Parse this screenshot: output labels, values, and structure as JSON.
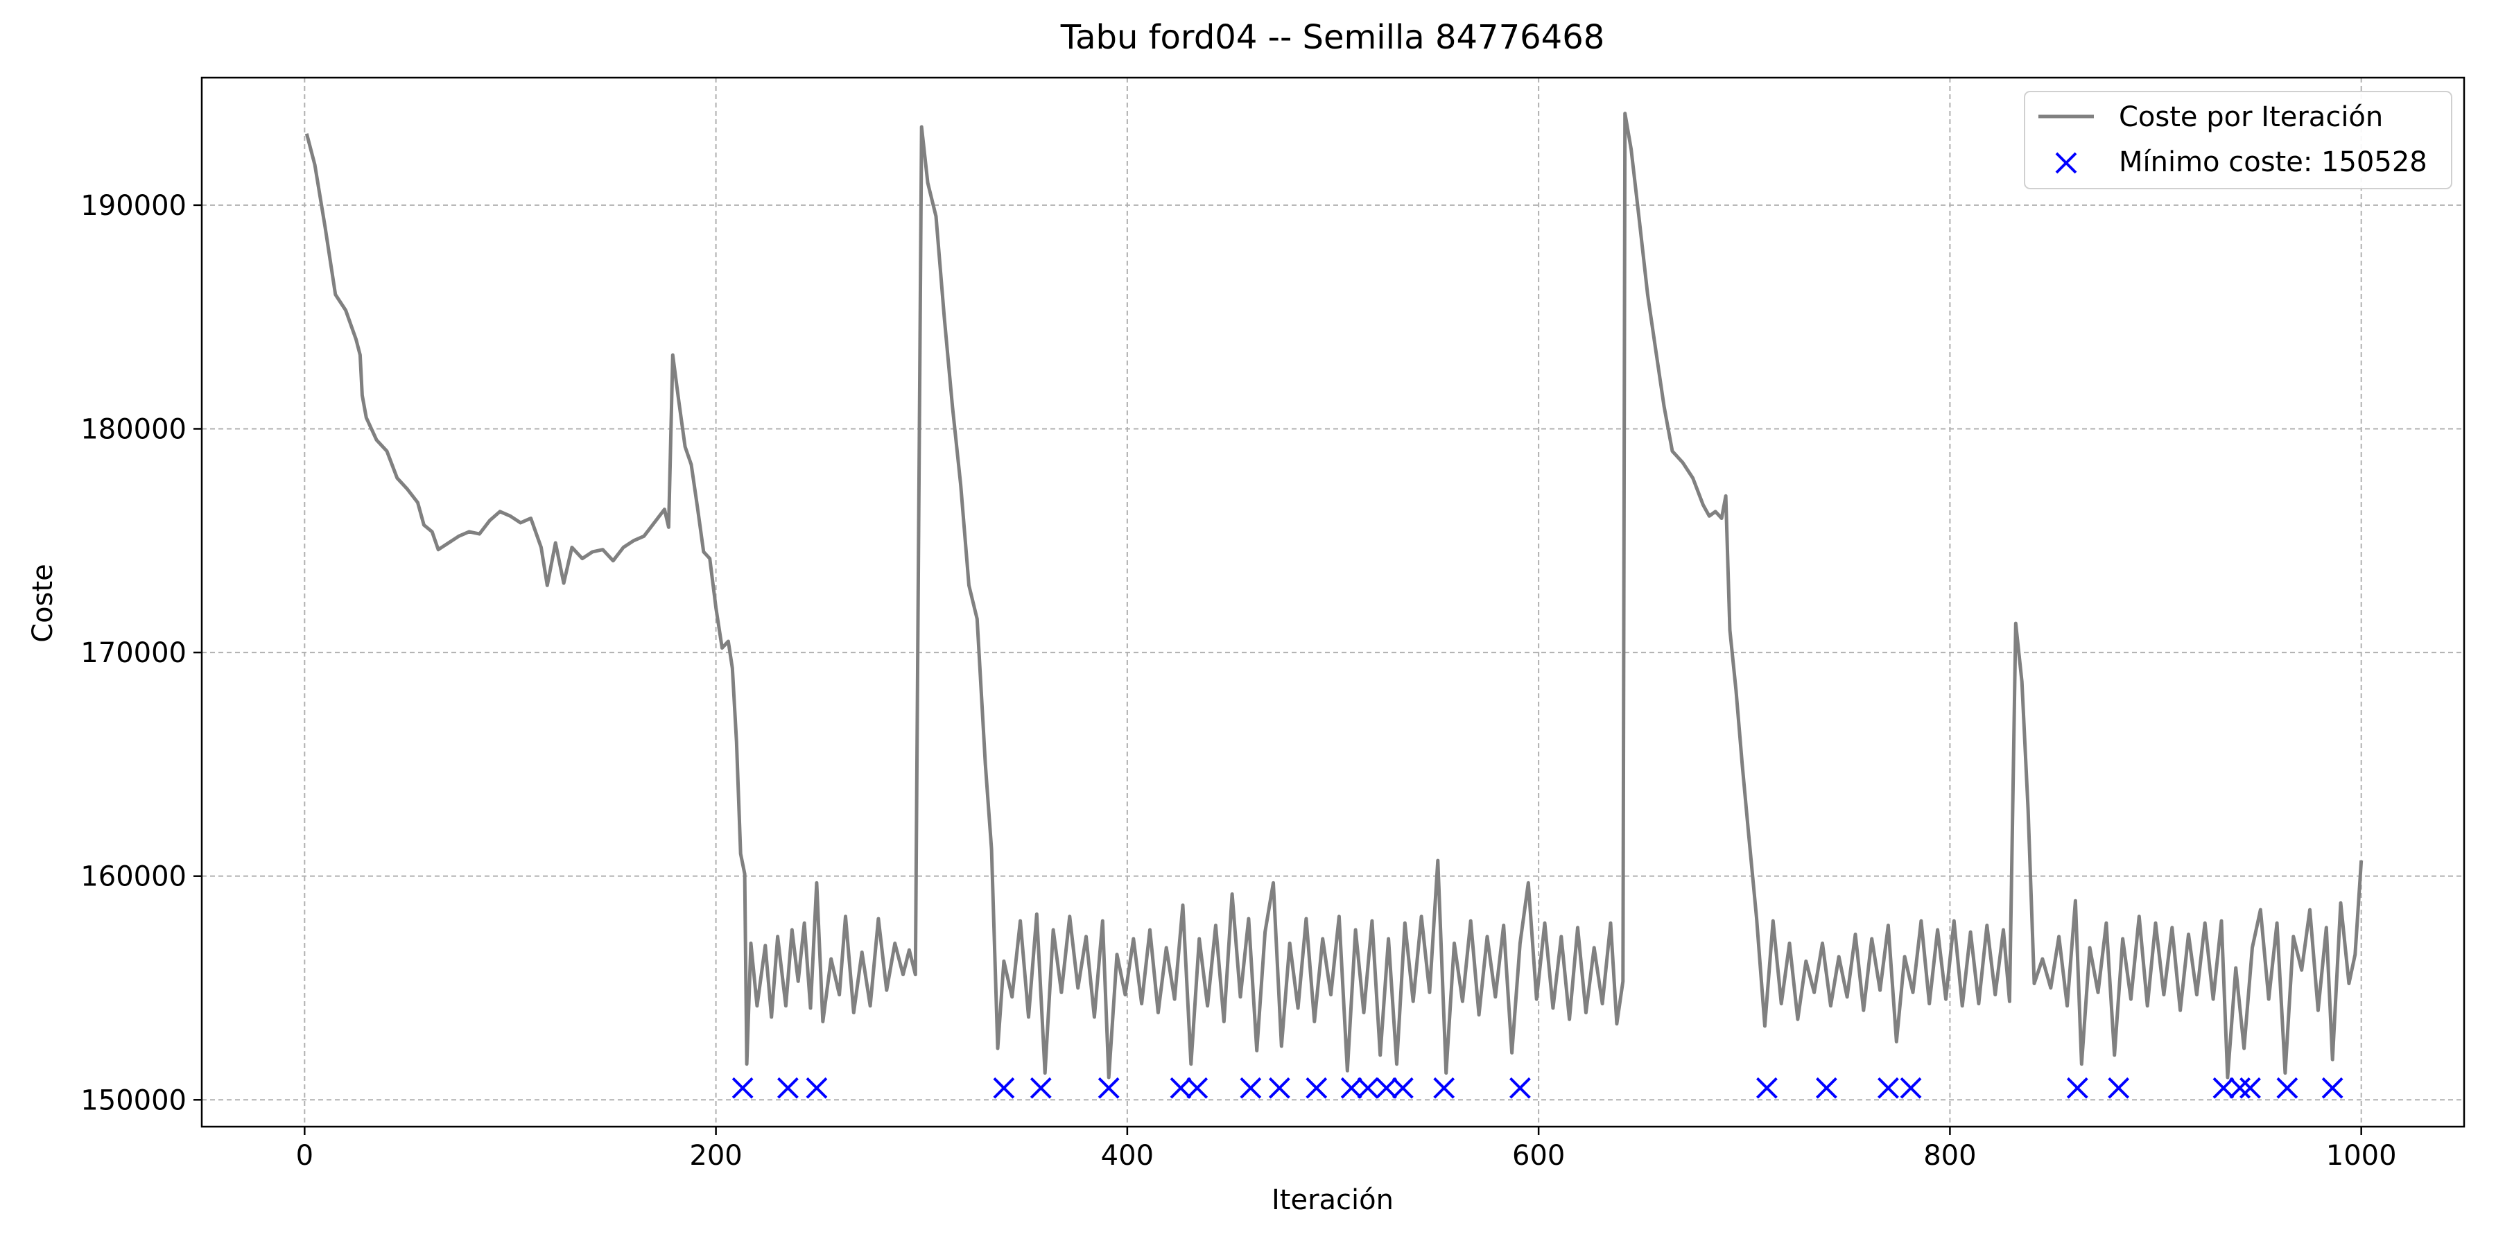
{
  "chart_data": {
    "type": "line",
    "title": "Tabu ford04 -- Semilla 84776468",
    "xlabel": "Iteración",
    "ylabel": "Coste",
    "xlim": [
      -50,
      1050
    ],
    "ylim": [
      148800,
      195700
    ],
    "xticks": [
      0,
      200,
      400,
      600,
      800,
      1000
    ],
    "yticks": [
      150000,
      160000,
      170000,
      180000,
      190000
    ],
    "grid": true,
    "legend_position": "top-right",
    "series": [
      {
        "name": "Coste por Iteración",
        "color": "#808080",
        "anchors": [
          [
            1,
            193200
          ],
          [
            5,
            191800
          ],
          [
            10,
            189000
          ],
          [
            15,
            186000
          ],
          [
            20,
            185300
          ],
          [
            25,
            184000
          ],
          [
            27,
            183300
          ],
          [
            28,
            181500
          ],
          [
            30,
            180500
          ],
          [
            35,
            179500
          ],
          [
            40,
            179000
          ],
          [
            45,
            177800
          ],
          [
            50,
            177300
          ],
          [
            55,
            176700
          ],
          [
            58,
            175700
          ],
          [
            62,
            175400
          ],
          [
            65,
            174600
          ],
          [
            70,
            174900
          ],
          [
            75,
            175200
          ],
          [
            80,
            175400
          ],
          [
            85,
            175300
          ],
          [
            90,
            175900
          ],
          [
            95,
            176300
          ],
          [
            100,
            176100
          ],
          [
            105,
            175800
          ],
          [
            110,
            176000
          ],
          [
            115,
            174700
          ],
          [
            118,
            173000
          ],
          [
            122,
            174900
          ],
          [
            126,
            173100
          ],
          [
            130,
            174700
          ],
          [
            135,
            174200
          ],
          [
            140,
            174500
          ],
          [
            145,
            174600
          ],
          [
            150,
            174100
          ],
          [
            155,
            174700
          ],
          [
            160,
            175000
          ],
          [
            165,
            175200
          ],
          [
            170,
            175800
          ],
          [
            175,
            176400
          ],
          [
            177,
            175600
          ],
          [
            179,
            183300
          ],
          [
            182,
            181200
          ],
          [
            185,
            179200
          ],
          [
            188,
            178400
          ],
          [
            191,
            176500
          ],
          [
            194,
            174500
          ],
          [
            197,
            174200
          ],
          [
            200,
            172000
          ],
          [
            203,
            170200
          ],
          [
            206,
            170500
          ],
          [
            208,
            169300
          ],
          [
            210,
            166000
          ],
          [
            212,
            161000
          ],
          [
            214,
            160100
          ],
          [
            215,
            151600
          ],
          [
            217,
            157000
          ],
          [
            220,
            154200
          ],
          [
            224,
            156900
          ],
          [
            227,
            153700
          ],
          [
            230,
            157300
          ],
          [
            234,
            154200
          ],
          [
            237,
            157600
          ],
          [
            240,
            155300
          ],
          [
            243,
            157900
          ],
          [
            246,
            154100
          ],
          [
            249,
            159700
          ],
          [
            252,
            153500
          ],
          [
            256,
            156300
          ],
          [
            260,
            154700
          ],
          [
            263,
            158200
          ],
          [
            267,
            153900
          ],
          [
            271,
            156600
          ],
          [
            275,
            154200
          ],
          [
            279,
            158100
          ],
          [
            283,
            154900
          ],
          [
            287,
            157000
          ],
          [
            291,
            155600
          ],
          [
            294,
            156700
          ],
          [
            297,
            155600
          ],
          [
            300,
            193500
          ],
          [
            303,
            191000
          ],
          [
            307,
            189500
          ],
          [
            311,
            185000
          ],
          [
            315,
            181000
          ],
          [
            319,
            177500
          ],
          [
            323,
            173000
          ],
          [
            327,
            171500
          ],
          [
            331,
            165000
          ],
          [
            334,
            161200
          ],
          [
            337,
            152300
          ],
          [
            340,
            156200
          ],
          [
            344,
            154600
          ],
          [
            348,
            158000
          ],
          [
            352,
            153700
          ],
          [
            356,
            158300
          ],
          [
            360,
            151200
          ],
          [
            364,
            157600
          ],
          [
            368,
            154800
          ],
          [
            372,
            158200
          ],
          [
            376,
            155000
          ],
          [
            380,
            157300
          ],
          [
            384,
            153700
          ],
          [
            388,
            158000
          ],
          [
            391,
            151000
          ],
          [
            395,
            156500
          ],
          [
            399,
            154700
          ],
          [
            403,
            157200
          ],
          [
            407,
            154300
          ],
          [
            411,
            157600
          ],
          [
            415,
            153900
          ],
          [
            419,
            156800
          ],
          [
            423,
            154500
          ],
          [
            427,
            158700
          ],
          [
            431,
            151600
          ],
          [
            435,
            157200
          ],
          [
            439,
            154200
          ],
          [
            443,
            157800
          ],
          [
            447,
            153500
          ],
          [
            451,
            159200
          ],
          [
            455,
            154600
          ],
          [
            459,
            158100
          ],
          [
            463,
            152200
          ],
          [
            467,
            157500
          ],
          [
            471,
            159700
          ],
          [
            475,
            152400
          ],
          [
            479,
            157000
          ],
          [
            483,
            154100
          ],
          [
            487,
            158100
          ],
          [
            491,
            153500
          ],
          [
            495,
            157200
          ],
          [
            499,
            154700
          ],
          [
            503,
            158200
          ],
          [
            507,
            151300
          ],
          [
            511,
            157600
          ],
          [
            515,
            153900
          ],
          [
            519,
            158000
          ],
          [
            523,
            152000
          ],
          [
            527,
            157200
          ],
          [
            531,
            151600
          ],
          [
            535,
            157900
          ],
          [
            539,
            154400
          ],
          [
            543,
            158200
          ],
          [
            547,
            154800
          ],
          [
            551,
            160700
          ],
          [
            555,
            151200
          ],
          [
            559,
            157000
          ],
          [
            563,
            154400
          ],
          [
            567,
            158000
          ],
          [
            571,
            153800
          ],
          [
            575,
            157300
          ],
          [
            579,
            154600
          ],
          [
            583,
            157800
          ],
          [
            587,
            152100
          ],
          [
            591,
            157000
          ],
          [
            595,
            159700
          ],
          [
            599,
            154500
          ],
          [
            603,
            157900
          ],
          [
            607,
            154100
          ],
          [
            611,
            157300
          ],
          [
            615,
            153600
          ],
          [
            619,
            157700
          ],
          [
            623,
            153900
          ],
          [
            627,
            156800
          ],
          [
            631,
            154300
          ],
          [
            635,
            157900
          ],
          [
            638,
            153400
          ],
          [
            641,
            155300
          ],
          [
            642,
            194100
          ],
          [
            645,
            192500
          ],
          [
            649,
            189300
          ],
          [
            653,
            186000
          ],
          [
            657,
            183500
          ],
          [
            661,
            181000
          ],
          [
            665,
            179000
          ],
          [
            670,
            178500
          ],
          [
            675,
            177800
          ],
          [
            680,
            176600
          ],
          [
            683,
            176100
          ],
          [
            686,
            176300
          ],
          [
            689,
            176000
          ],
          [
            691,
            177000
          ],
          [
            693,
            171000
          ],
          [
            696,
            168300
          ],
          [
            699,
            165000
          ],
          [
            702,
            162000
          ],
          [
            706,
            158100
          ],
          [
            710,
            153300
          ],
          [
            714,
            158000
          ],
          [
            718,
            154300
          ],
          [
            722,
            157000
          ],
          [
            726,
            153600
          ],
          [
            730,
            156200
          ],
          [
            734,
            154800
          ],
          [
            738,
            157000
          ],
          [
            742,
            154200
          ],
          [
            746,
            156400
          ],
          [
            750,
            154600
          ],
          [
            754,
            157400
          ],
          [
            758,
            154000
          ],
          [
            762,
            157200
          ],
          [
            766,
            154900
          ],
          [
            770,
            157800
          ],
          [
            774,
            152600
          ],
          [
            778,
            156400
          ],
          [
            782,
            154800
          ],
          [
            786,
            158000
          ],
          [
            790,
            154300
          ],
          [
            794,
            157600
          ],
          [
            798,
            154500
          ],
          [
            802,
            158000
          ],
          [
            806,
            154200
          ],
          [
            810,
            157500
          ],
          [
            814,
            154300
          ],
          [
            818,
            157800
          ],
          [
            822,
            154700
          ],
          [
            826,
            157600
          ],
          [
            829,
            154400
          ],
          [
            832,
            171300
          ],
          [
            835,
            168700
          ],
          [
            838,
            163000
          ],
          [
            841,
            155200
          ],
          [
            845,
            156300
          ],
          [
            849,
            155000
          ],
          [
            853,
            157300
          ],
          [
            857,
            154200
          ],
          [
            861,
            158900
          ],
          [
            864,
            151600
          ],
          [
            868,
            156800
          ],
          [
            872,
            154800
          ],
          [
            876,
            157900
          ],
          [
            880,
            152000
          ],
          [
            884,
            157200
          ],
          [
            888,
            154500
          ],
          [
            892,
            158200
          ],
          [
            896,
            154200
          ],
          [
            900,
            157900
          ],
          [
            904,
            154700
          ],
          [
            908,
            157700
          ],
          [
            912,
            154000
          ],
          [
            916,
            157400
          ],
          [
            920,
            154700
          ],
          [
            924,
            157900
          ],
          [
            928,
            154500
          ],
          [
            932,
            158000
          ],
          [
            935,
            151000
          ],
          [
            939,
            155900
          ],
          [
            943,
            152300
          ],
          [
            947,
            156800
          ],
          [
            951,
            158500
          ],
          [
            955,
            154500
          ],
          [
            959,
            157900
          ],
          [
            963,
            151200
          ],
          [
            967,
            157300
          ],
          [
            971,
            155800
          ],
          [
            975,
            158500
          ],
          [
            979,
            154000
          ],
          [
            983,
            157700
          ],
          [
            986,
            151800
          ],
          [
            990,
            158800
          ],
          [
            994,
            155200
          ],
          [
            997,
            156500
          ],
          [
            1000,
            160700
          ]
        ]
      },
      {
        "name": "Mínimo coste: 150528",
        "color": "#0000ff",
        "marker": "x",
        "y": 150528,
        "x": [
          213,
          235,
          249,
          340,
          358,
          391,
          426,
          434,
          460,
          474,
          492,
          509,
          517,
          526,
          534,
          554,
          591,
          711,
          740,
          770,
          781,
          862,
          882,
          933,
          941,
          946,
          964,
          986
        ]
      }
    ]
  }
}
